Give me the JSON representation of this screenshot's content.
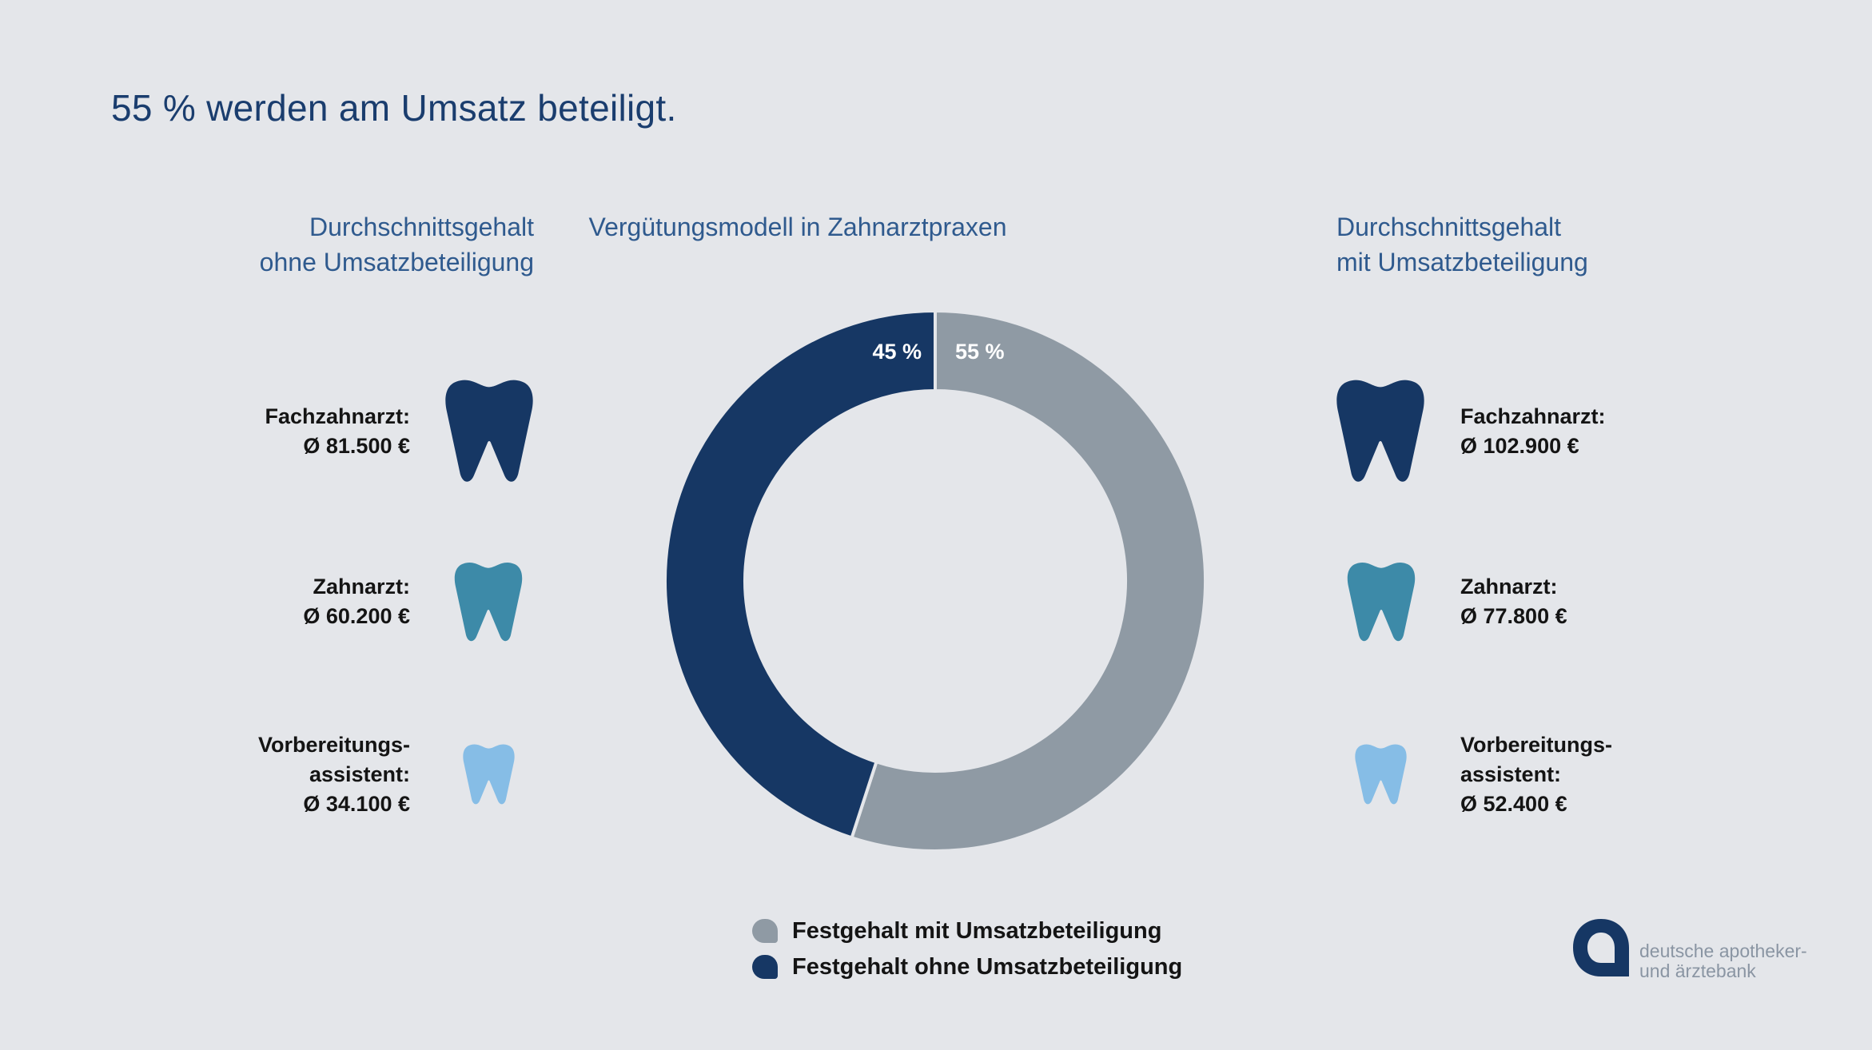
{
  "title": "55 % werden am Umsatz beteiligt.",
  "left_heading": [
    "Durchschnittsgehalt",
    "ohne Umsatzbeteiligung"
  ],
  "center_heading": "Vergütungsmodell in Zahnarztpraxen",
  "right_heading": [
    "Durchschnittsgehalt",
    "mit Umsatzbeteiligung"
  ],
  "left_entries": [
    {
      "lines": [
        "Fachzahnarzt:",
        "Ø 81.500 €"
      ],
      "tooth_color": "#163764"
    },
    {
      "lines": [
        "Zahnarzt:",
        "Ø 60.200 €"
      ],
      "tooth_color": "#3d8aa8"
    },
    {
      "lines": [
        "Vorbereitungs-",
        "assistent:",
        "Ø 34.100 €"
      ],
      "tooth_color": "#86bde6"
    }
  ],
  "right_entries": [
    {
      "lines": [
        "Fachzahnarzt:",
        "Ø 102.900 €"
      ],
      "tooth_color": "#163764"
    },
    {
      "lines": [
        "Zahnarzt:",
        "Ø 77.800 €"
      ],
      "tooth_color": "#3d8aa8"
    },
    {
      "lines": [
        "Vorbereitungs-",
        "assistent:",
        "Ø 52.400 €"
      ],
      "tooth_color": "#86bde6"
    }
  ],
  "chart_data": {
    "type": "pie",
    "title": "Vergütungsmodell in Zahnarztpraxen",
    "donut": true,
    "slices": [
      {
        "name": "Festgehalt mit Umsatzbeteiligung",
        "value": 55,
        "label": "55 %",
        "color": "#8f9aa4"
      },
      {
        "name": "Festgehalt ohne Umsatzbeteiligung",
        "value": 45,
        "label": "45 %",
        "color": "#163764"
      }
    ],
    "legend_placement": "bottom"
  },
  "legend": [
    {
      "label": "Festgehalt mit Umsatzbeteiligung",
      "color": "#8f9aa4"
    },
    {
      "label": "Festgehalt ohne Umsatzbeteiligung",
      "color": "#163764"
    }
  ],
  "brand": {
    "line1": "deutsche apotheker-",
    "line2": "und ärztebank",
    "logo_color": "#163764"
  }
}
